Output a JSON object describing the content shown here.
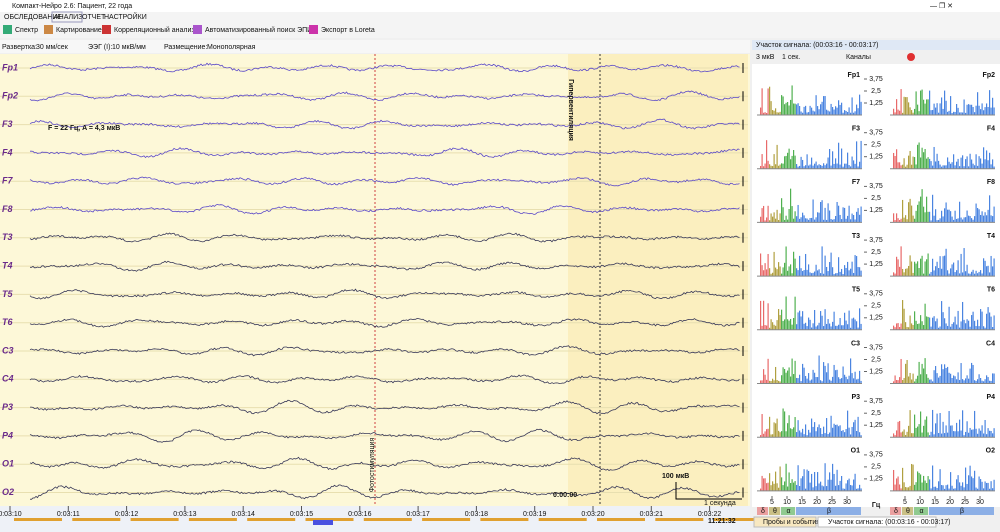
{
  "window": {
    "title": "Компакт-Нейро 2.6: Пациент, 22 года"
  },
  "menu": [
    "ОБСЛЕДОВАНИЕ",
    "АНАЛИЗ",
    "ОТЧЕТ",
    "НАСТРОЙКИ"
  ],
  "toolbar": [
    "Спектр",
    "Картирование",
    "Корреляционный анализ",
    "Автоматизированный поиск ЭПИ",
    "Экспорт в Loreta"
  ],
  "controls": {
    "sweep_label": "Развертка:",
    "sweep": "30 мм/сек",
    "eeg_label": "ЭЭГ (I):",
    "eeg": "10 мкВ/мм",
    "montage_label": "Размещение:",
    "montage": "Монополярная"
  },
  "eeg": {
    "channels": [
      "Fp1",
      "Fp2",
      "F3",
      "F4",
      "F7",
      "F8",
      "T3",
      "T4",
      "T5",
      "T6",
      "C3",
      "C4",
      "P3",
      "P4",
      "O1",
      "O2"
    ],
    "marker_text": "F = 22 Гц, A = 4,3 мкВ",
    "hyperventilation": "Гипервентиляция",
    "photostim": "Фотостимуляция",
    "event_time": "0:00:00",
    "scale_amp": "100 мкВ",
    "scale_time": "1 секунда",
    "time_labels": [
      "0:03:10",
      "0:03:11",
      "0:03:12",
      "0:03:13",
      "0:03:14",
      "0:03:15",
      "0:03:16",
      "0:03:17",
      "0:03:18",
      "0:03:19",
      "0:03:20",
      "0:03:21",
      "0:03:22"
    ],
    "clock": "11:21:32"
  },
  "panel": {
    "title": "Участок сигнала: (00:03:16 - 00:03:17)",
    "scale": "3 мкВ",
    "window": "1 сек.",
    "channels_btn": "Каналы",
    "left_channels": [
      "Fp1",
      "F3",
      "F7",
      "T3",
      "T5",
      "C3",
      "P3",
      "O1"
    ],
    "right_channels": [
      "Fp2",
      "F4",
      "F8",
      "T4",
      "T6",
      "C4",
      "P4",
      "O2"
    ],
    "ylim": [
      0,
      5
    ],
    "yticks": [
      {
        "value": 3.75,
        "label": "3,75"
      },
      {
        "value": 2.5,
        "label": "2,5"
      },
      {
        "value": 1.25,
        "label": "1,25"
      }
    ],
    "xlim": [
      0,
      35
    ],
    "xticks": [
      5,
      10,
      15,
      20,
      25,
      30
    ],
    "x_unit": "Гц",
    "bands": [
      "δ",
      "θ",
      "α",
      "β"
    ]
  },
  "tabs": [
    "Пробы и события",
    "Участок сигнала: (00:03:16 - 00:03:17)"
  ]
}
